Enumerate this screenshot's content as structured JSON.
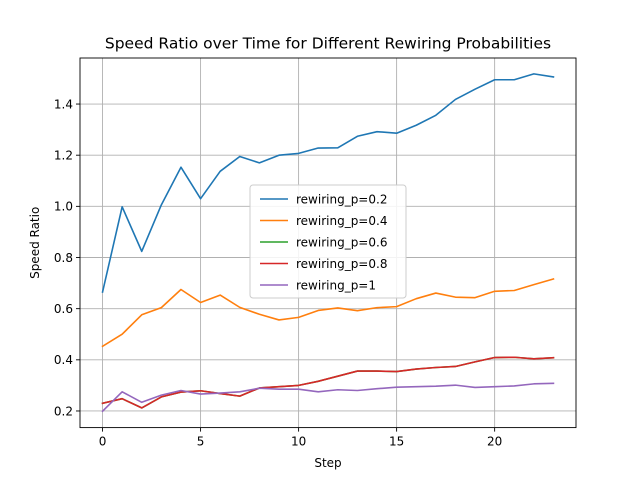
{
  "chart_data": {
    "type": "line",
    "title": "Speed Ratio over Time for Different Rewiring Probabilities",
    "xlabel": "Step",
    "ylabel": "Speed Ratio",
    "xlim": [
      -1.15,
      24.15
    ],
    "ylim": [
      0.135,
      1.58
    ],
    "xticks": [
      0,
      5,
      10,
      15,
      20
    ],
    "yticks": [
      0.2,
      0.4,
      0.6,
      0.8,
      1.0,
      1.2,
      1.4
    ],
    "ytick_labels": [
      "0.2",
      "0.4",
      "0.6",
      "0.8",
      "1.0",
      "1.2",
      "1.4"
    ],
    "grid": true,
    "legend_position": "center",
    "x": [
      0,
      1,
      2,
      3,
      4,
      5,
      6,
      7,
      8,
      9,
      10,
      11,
      12,
      13,
      14,
      15,
      16,
      17,
      18,
      19,
      20,
      21,
      22,
      23
    ],
    "series": [
      {
        "name": "rewiring_p=0.2",
        "color": "#1f77b4",
        "values": [
          0.665,
          0.998,
          0.824,
          1.006,
          1.153,
          1.03,
          1.137,
          1.195,
          1.17,
          1.2,
          1.207,
          1.228,
          1.229,
          1.274,
          1.292,
          1.286,
          1.317,
          1.356,
          1.418,
          1.458,
          1.495,
          1.495,
          1.518,
          1.506
        ]
      },
      {
        "name": "rewiring_p=0.4",
        "color": "#ff7f0e",
        "values": [
          0.453,
          0.5,
          0.576,
          0.604,
          0.675,
          0.624,
          0.653,
          0.605,
          0.578,
          0.556,
          0.566,
          0.593,
          0.603,
          0.592,
          0.604,
          0.608,
          0.639,
          0.661,
          0.645,
          0.643,
          0.668,
          0.671,
          0.694,
          0.716
        ]
      },
      {
        "name": "rewiring_p=0.6",
        "color": "#2ca02c",
        "values": [
          0.23,
          0.248,
          0.212,
          0.255,
          0.274,
          0.279,
          0.268,
          0.258,
          0.29,
          0.295,
          0.3,
          0.316,
          0.336,
          0.356,
          0.356,
          0.354,
          0.364,
          0.37,
          0.374,
          0.392,
          0.409,
          0.41,
          0.404,
          0.408
        ]
      },
      {
        "name": "rewiring_p=0.8",
        "color": "#d62728",
        "values": [
          0.23,
          0.248,
          0.212,
          0.255,
          0.274,
          0.279,
          0.268,
          0.258,
          0.29,
          0.295,
          0.3,
          0.316,
          0.336,
          0.356,
          0.356,
          0.354,
          0.364,
          0.37,
          0.374,
          0.392,
          0.409,
          0.41,
          0.404,
          0.408
        ]
      },
      {
        "name": "rewiring_p=1",
        "color": "#9467bd",
        "values": [
          0.199,
          0.275,
          0.234,
          0.262,
          0.28,
          0.266,
          0.27,
          0.275,
          0.289,
          0.285,
          0.285,
          0.275,
          0.283,
          0.28,
          0.287,
          0.293,
          0.295,
          0.297,
          0.301,
          0.292,
          0.295,
          0.298,
          0.306,
          0.308
        ]
      }
    ]
  }
}
